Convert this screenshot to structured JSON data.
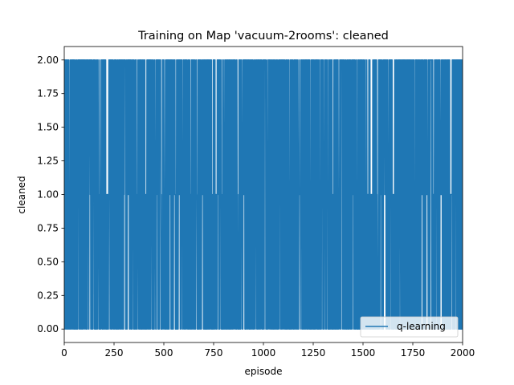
{
  "chart_data": {
    "type": "line",
    "title": "Training on Map 'vacuum-2rooms': cleaned",
    "xlabel": "episode",
    "ylabel": "cleaned",
    "xlim": [
      0,
      2000
    ],
    "ylim": [
      -0.1,
      2.1
    ],
    "x_ticks": [
      "0",
      "250",
      "500",
      "750",
      "1000",
      "1250",
      "1500",
      "1750",
      "2000"
    ],
    "y_ticks": [
      "0.00",
      "0.25",
      "0.50",
      "0.75",
      "1.00",
      "1.25",
      "1.50",
      "1.75",
      "2.00"
    ],
    "grid": false,
    "legend_position": "lower right",
    "series": [
      {
        "name": "q-learning",
        "color": "#1f77b4",
        "value_levels": [
          0,
          1,
          2
        ],
        "x_range": [
          0,
          2000
        ],
        "description_of_pattern": "per-episode value oscillating rapidly among 0, 1 and 2 across all 2000 episodes",
        "gaps_without_value_2": [
          183,
          412,
          458,
          505,
          620,
          635,
          690,
          760,
          790,
          870,
          893,
          958,
          1063,
          1110,
          1183,
          1235,
          1325,
          1350,
          1380,
          1440,
          1540,
          1600,
          1627,
          1650,
          1760,
          1825,
          1890,
          1945
        ],
        "gaps_without_value_0": [
          105,
          170,
          345,
          370,
          455,
          500,
          530,
          555,
          575,
          785,
          890,
          960,
          1180,
          1190,
          1320,
          1590,
          1610,
          1625,
          1640,
          1660,
          1700,
          1795,
          1820,
          1890,
          1895,
          1945
        ]
      }
    ]
  }
}
